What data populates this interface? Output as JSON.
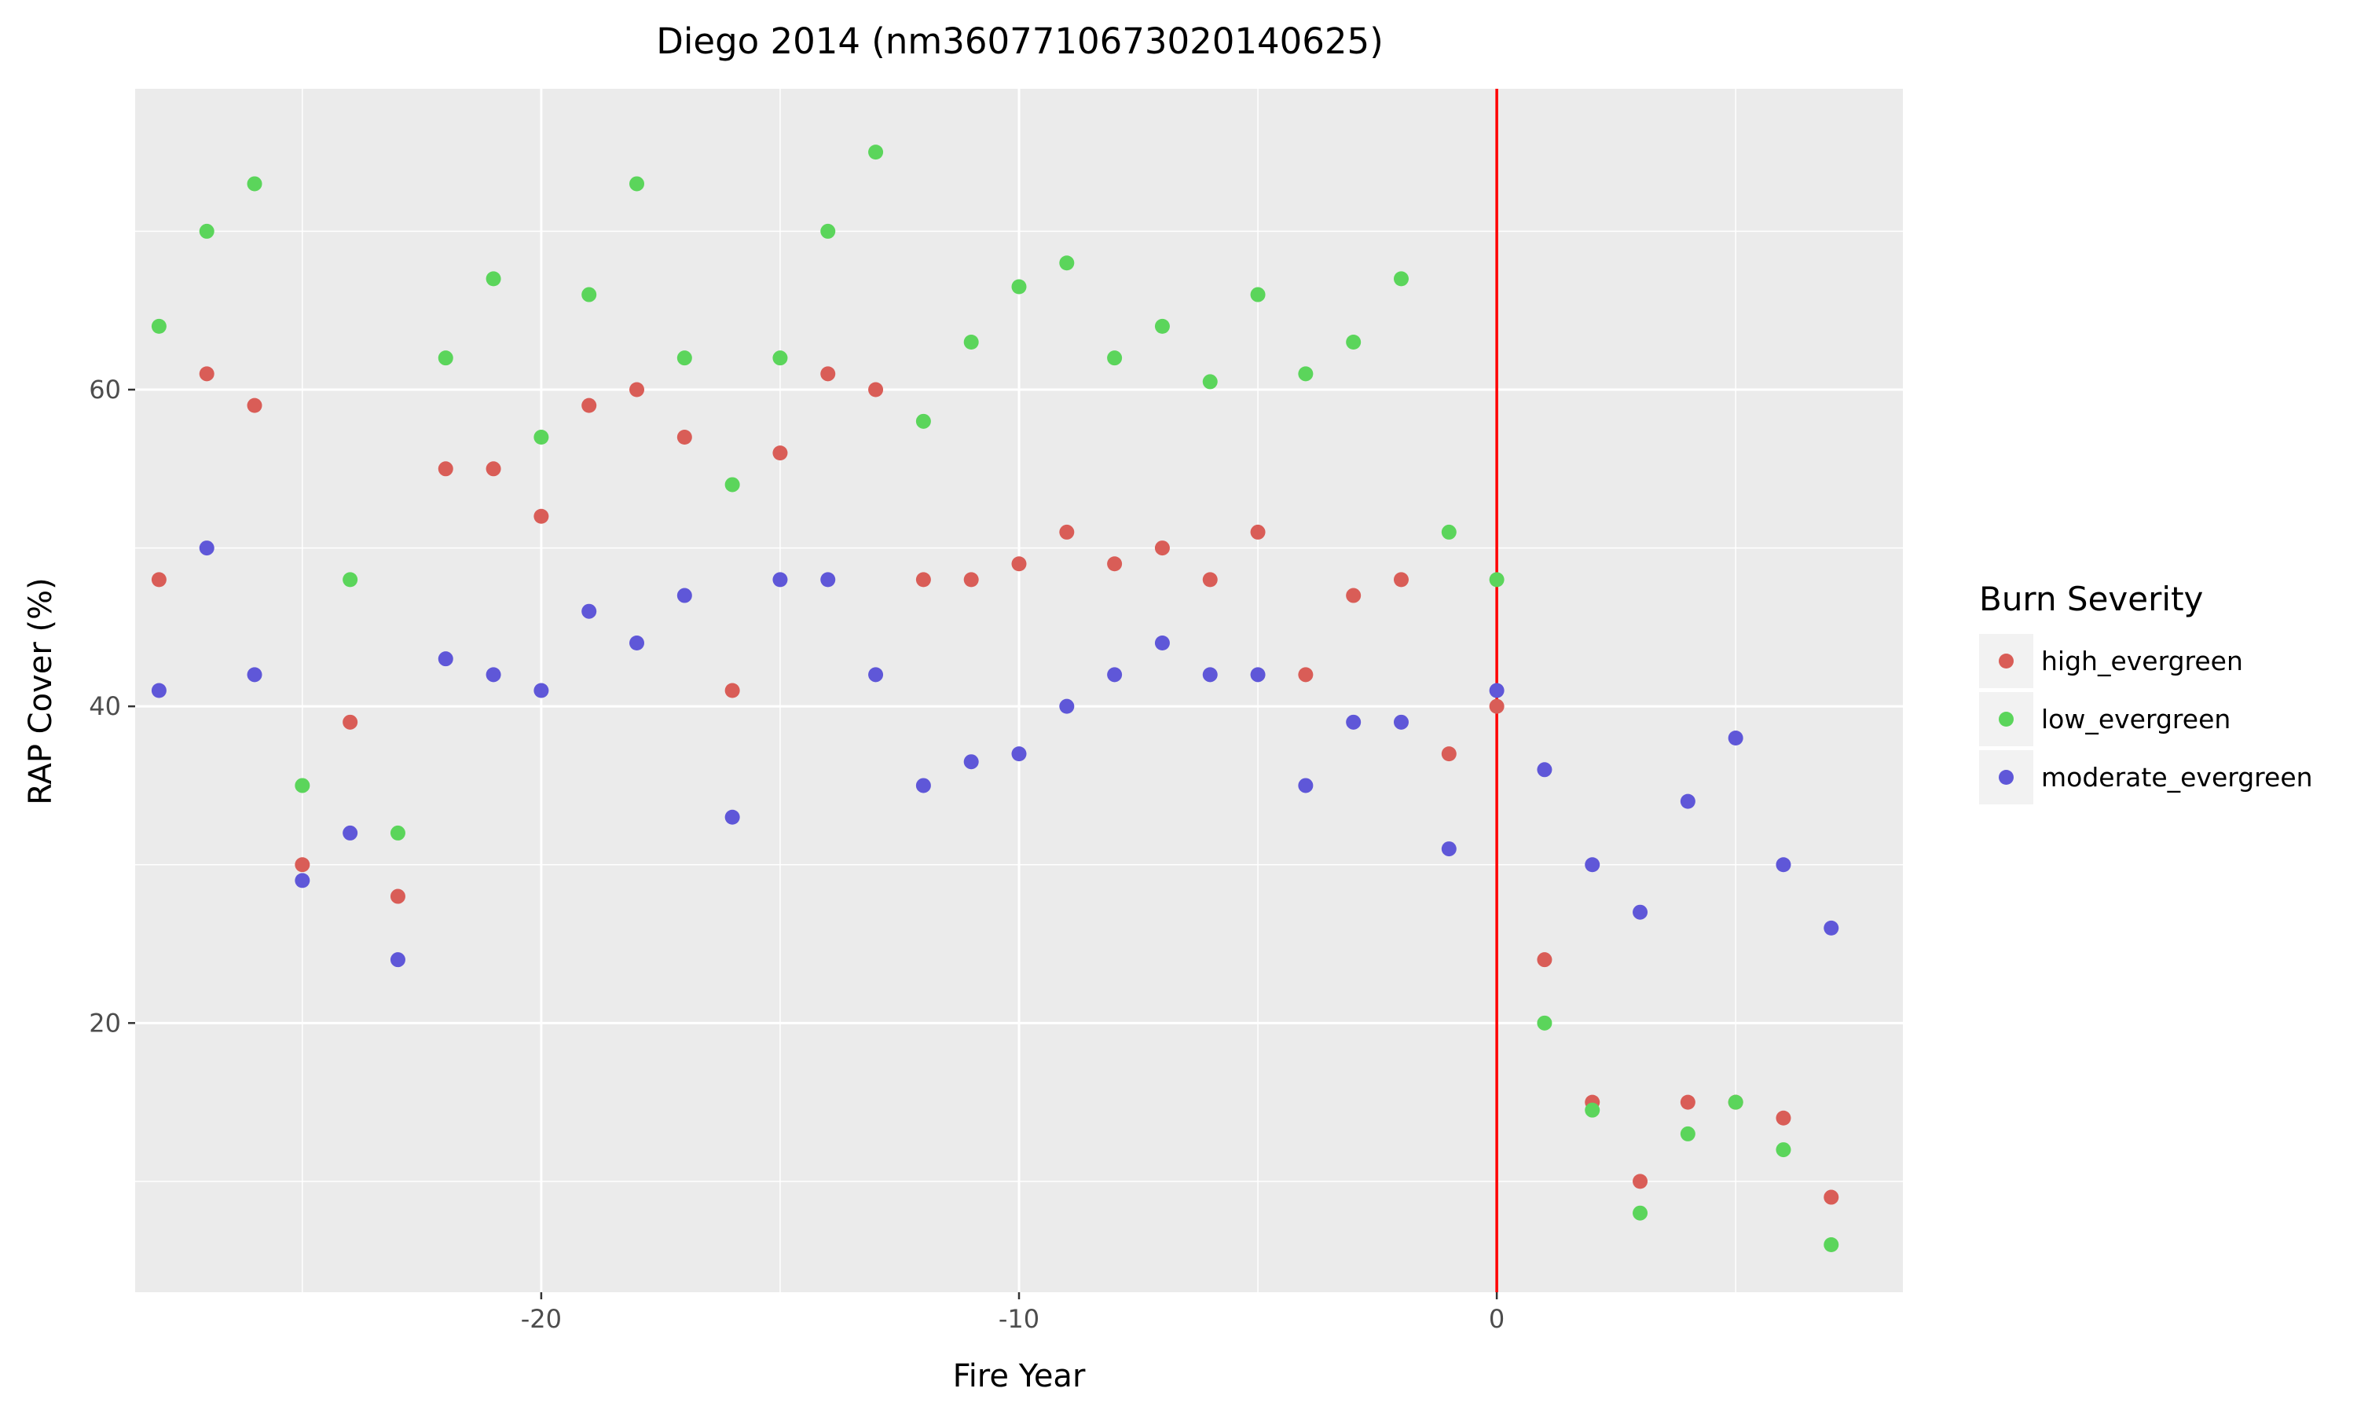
{
  "chart_data": {
    "type": "scatter",
    "title": "Diego 2014 (nm3607710673020140625)",
    "xlabel": "Fire Year",
    "ylabel": "RAP Cover (%)",
    "xlim": [
      -28.5,
      8.5
    ],
    "ylim": [
      3,
      79
    ],
    "x_ticks": [
      -20,
      -10,
      0
    ],
    "y_ticks": [
      20,
      40,
      60
    ],
    "x_tick_labels": [
      "-20",
      "-10",
      "0"
    ],
    "y_tick_labels": [
      "20",
      "40",
      "60"
    ],
    "grid": true,
    "vline": {
      "x": 0,
      "color": "#ff0000"
    },
    "legend": {
      "title": "Burn Severity",
      "position": "right"
    },
    "series": [
      {
        "name": "high_evergreen",
        "color": "#d95d57",
        "points": [
          [
            -28,
            48
          ],
          [
            -27,
            61
          ],
          [
            -26,
            59
          ],
          [
            -25,
            30
          ],
          [
            -24,
            39
          ],
          [
            -23,
            28
          ],
          [
            -22,
            55
          ],
          [
            -21,
            55
          ],
          [
            -20,
            52
          ],
          [
            -19,
            59
          ],
          [
            -18,
            60
          ],
          [
            -17,
            57
          ],
          [
            -16,
            41
          ],
          [
            -15,
            56
          ],
          [
            -14,
            61
          ],
          [
            -13,
            60
          ],
          [
            -12,
            48
          ],
          [
            -11,
            48
          ],
          [
            -10,
            49
          ],
          [
            -9,
            51
          ],
          [
            -8,
            49
          ],
          [
            -7,
            50
          ],
          [
            -6,
            48
          ],
          [
            -5,
            51
          ],
          [
            -4,
            42
          ],
          [
            -3,
            47
          ],
          [
            -2,
            48
          ],
          [
            -1,
            37
          ],
          [
            0,
            40
          ],
          [
            1,
            24
          ],
          [
            2,
            15
          ],
          [
            3,
            10
          ],
          [
            4,
            15
          ],
          [
            5,
            15
          ],
          [
            6,
            14
          ],
          [
            7,
            9
          ]
        ]
      },
      {
        "name": "low_evergreen",
        "color": "#5bd55b",
        "points": [
          [
            -28,
            64
          ],
          [
            -27,
            70
          ],
          [
            -26,
            73
          ],
          [
            -25,
            35
          ],
          [
            -24,
            48
          ],
          [
            -23,
            32
          ],
          [
            -22,
            62
          ],
          [
            -21,
            67
          ],
          [
            -20,
            57
          ],
          [
            -19,
            66
          ],
          [
            -18,
            73
          ],
          [
            -17,
            62
          ],
          [
            -16,
            54
          ],
          [
            -15,
            62
          ],
          [
            -14,
            70
          ],
          [
            -13,
            75
          ],
          [
            -12,
            58
          ],
          [
            -11,
            63
          ],
          [
            -10,
            66.5
          ],
          [
            -9,
            68
          ],
          [
            -8,
            62
          ],
          [
            -7,
            64
          ],
          [
            -6,
            60.5
          ],
          [
            -5,
            66
          ],
          [
            -4,
            61
          ],
          [
            -3,
            63
          ],
          [
            -2,
            67
          ],
          [
            -1,
            51
          ],
          [
            0,
            48
          ],
          [
            1,
            20
          ],
          [
            2,
            14.5
          ],
          [
            3,
            8
          ],
          [
            4,
            13
          ],
          [
            5,
            15
          ],
          [
            6,
            12
          ],
          [
            7,
            6
          ]
        ]
      },
      {
        "name": "moderate_evergreen",
        "color": "#5f57d8",
        "points": [
          [
            -28,
            41
          ],
          [
            -27,
            50
          ],
          [
            -26,
            42
          ],
          [
            -25,
            29
          ],
          [
            -24,
            32
          ],
          [
            -23,
            24
          ],
          [
            -22,
            43
          ],
          [
            -21,
            42
          ],
          [
            -20,
            41
          ],
          [
            -19,
            46
          ],
          [
            -18,
            44
          ],
          [
            -17,
            47
          ],
          [
            -16,
            33
          ],
          [
            -15,
            48
          ],
          [
            -14,
            48
          ],
          [
            -13,
            42
          ],
          [
            -12,
            35
          ],
          [
            -11,
            36.5
          ],
          [
            -10,
            37
          ],
          [
            -9,
            40
          ],
          [
            -8,
            42
          ],
          [
            -7,
            44
          ],
          [
            -6,
            42
          ],
          [
            -5,
            42
          ],
          [
            -4,
            35
          ],
          [
            -3,
            39
          ],
          [
            -2,
            39
          ],
          [
            -1,
            31
          ],
          [
            0,
            41
          ],
          [
            1,
            36
          ],
          [
            2,
            30
          ],
          [
            3,
            27
          ],
          [
            4,
            34
          ],
          [
            5,
            38
          ],
          [
            6,
            30
          ],
          [
            7,
            26
          ]
        ]
      }
    ]
  }
}
